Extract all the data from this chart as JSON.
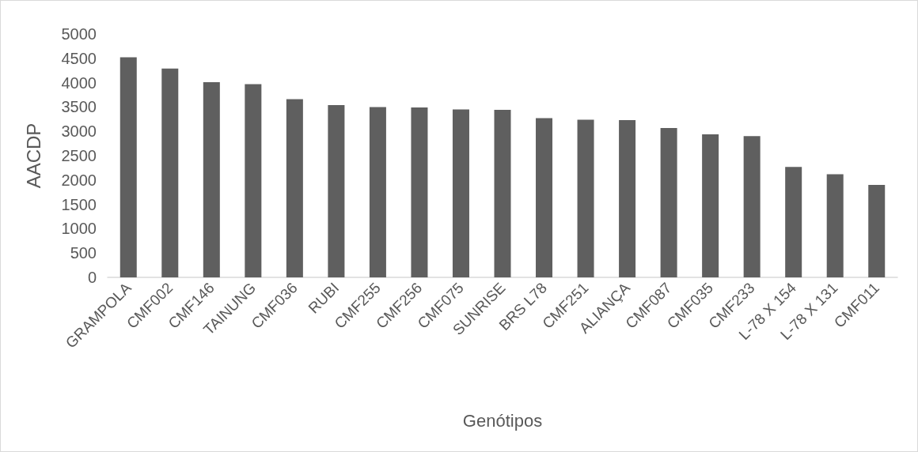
{
  "chart_data": {
    "type": "bar",
    "xlabel": "Genótipos",
    "ylabel": "AACDP",
    "categories": [
      "GRAMPOLA",
      "CMF002",
      "CMF146",
      "TAINUNG",
      "CMF036",
      "RUBI",
      "CMF255",
      "CMF256",
      "CMF075",
      "SUNRISE",
      "BRS L78",
      "CMF251",
      "ALIANÇA",
      "CMF087",
      "CMF035",
      "CMF233",
      "L-78 X 154",
      "L-78 X 131",
      "CMF011"
    ],
    "values": [
      4520,
      4290,
      4010,
      3970,
      3660,
      3540,
      3500,
      3490,
      3450,
      3440,
      3270,
      3240,
      3230,
      3070,
      2940,
      2900,
      2270,
      2120,
      1900
    ],
    "color": "#5f5f5f",
    "ylim": [
      0,
      5000
    ],
    "yticks": [
      0,
      500,
      1000,
      1500,
      2000,
      2500,
      3000,
      3500,
      4000,
      4500,
      5000
    ],
    "grid": false
  }
}
